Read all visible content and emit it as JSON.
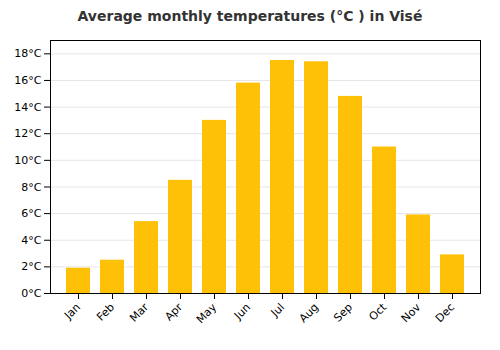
{
  "chart_data": {
    "type": "bar",
    "title": "Average monthly temperatures (°C ) in Visé",
    "categories": [
      "Jan",
      "Feb",
      "Mar",
      "Apr",
      "May",
      "Jun",
      "Jul",
      "Aug",
      "Sep",
      "Oct",
      "Nov",
      "Dec"
    ],
    "values": [
      1.9,
      2.5,
      5.4,
      8.5,
      13.0,
      15.8,
      17.5,
      17.4,
      14.8,
      11.0,
      5.9,
      2.9
    ],
    "color": "#FFC107",
    "ylim": [
      0,
      19
    ],
    "yticks": [
      {
        "value": 0,
        "label": "0°C"
      },
      {
        "value": 2,
        "label": "2°C"
      },
      {
        "value": 4,
        "label": "4°C"
      },
      {
        "value": 6,
        "label": "6°C"
      },
      {
        "value": 8,
        "label": "8°C"
      },
      {
        "value": 10,
        "label": "10°C"
      },
      {
        "value": 12,
        "label": "12°C"
      },
      {
        "value": 14,
        "label": "14°C"
      },
      {
        "value": 16,
        "label": "16°C"
      },
      {
        "value": 18,
        "label": "18°C"
      }
    ],
    "grid": true
  }
}
